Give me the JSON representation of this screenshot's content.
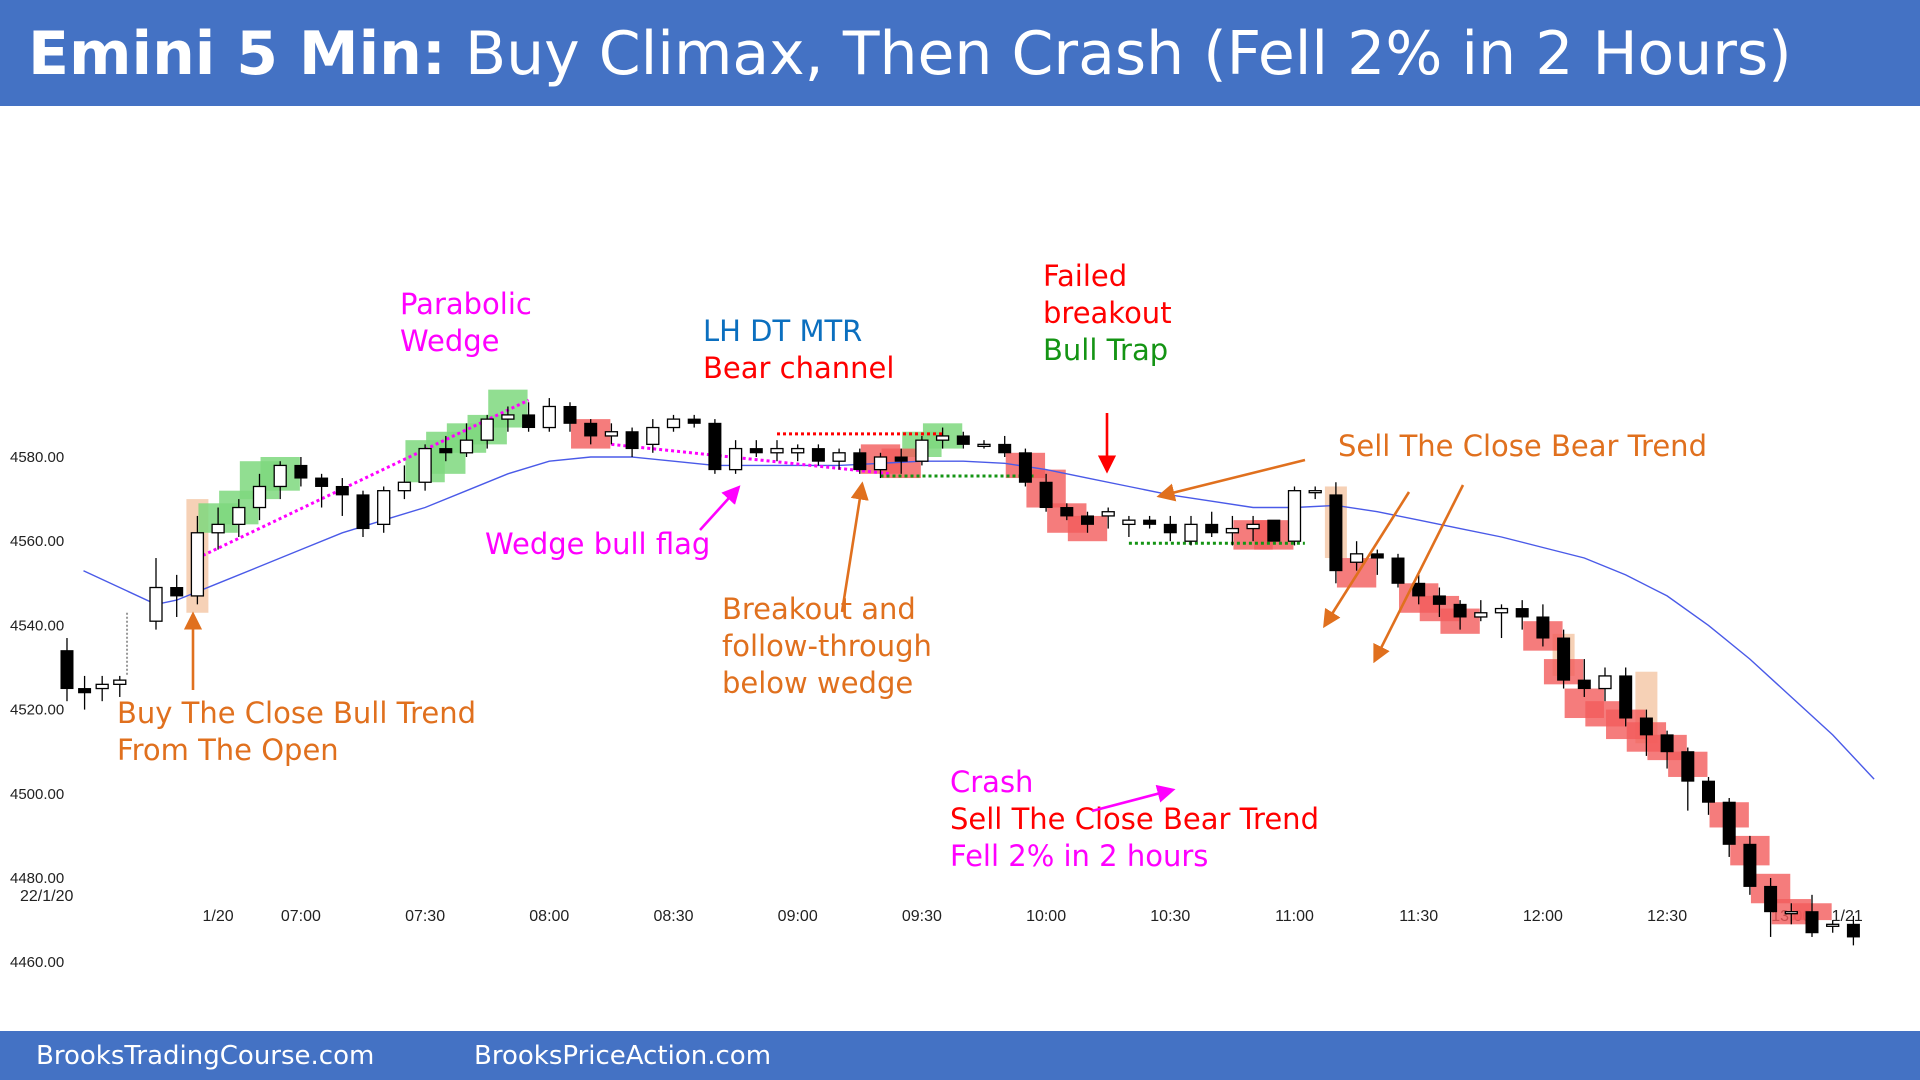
{
  "header": {
    "title_bold": "Emini 5 Min:",
    "title_rest": " Buy Climax, Then Crash (Fell 2% in 2 Hours)"
  },
  "footer": {
    "left": "BrooksTradingCourse.com",
    "right": "BrooksPriceAction.com"
  },
  "colors": {
    "header_bg": "#4472c4",
    "bull_box": "#7ed87e",
    "bear_box": "#f25b5b",
    "signal_box": "#f4c9a9",
    "ema": "#4a5ae8",
    "magenta": "#ff00ff",
    "orange": "#e0701e",
    "red": "#ff0000",
    "green": "#149414",
    "blue": "#0b6fbf"
  },
  "chart_data": {
    "type": "candlestick",
    "date_label": "22/1/20",
    "ylim": [
      4455,
      4615
    ],
    "y_ticks": [
      "4580.00",
      "4560.00",
      "4540.00",
      "4520.00",
      "4500.00",
      "4480.00",
      "4460.00"
    ],
    "x_tick_labels": [
      {
        "bar": 3,
        "label": "1/20"
      },
      {
        "bar": 7,
        "label": "07:00"
      },
      {
        "bar": 13,
        "label": "07:30"
      },
      {
        "bar": 19,
        "label": "08:00"
      },
      {
        "bar": 25,
        "label": "08:30"
      },
      {
        "bar": 31,
        "label": "09:00"
      },
      {
        "bar": 37,
        "label": "09:30"
      },
      {
        "bar": 43,
        "label": "10:00"
      },
      {
        "bar": 49,
        "label": "10:30"
      },
      {
        "bar": 55,
        "label": "11:00"
      },
      {
        "bar": 61,
        "label": "11:30"
      },
      {
        "bar": 67,
        "label": "12:00"
      },
      {
        "bar": 73,
        "label": "12:30"
      },
      {
        "bar": 79,
        "label": "13:00"
      },
      {
        "bar": 81.7,
        "label": "1/21"
      }
    ],
    "prev_day_bars": [
      [
        4534,
        4537,
        4522,
        4525
      ],
      [
        4525,
        4528,
        4520,
        4524
      ],
      [
        4525,
        4528,
        4522,
        4526
      ],
      [
        4526,
        4528,
        4523,
        4527
      ]
    ],
    "candles": [
      [
        4541,
        4556,
        4539,
        4549
      ],
      [
        4549,
        4552,
        4542,
        4547
      ],
      [
        4547,
        4566,
        4545,
        4562
      ],
      [
        4562,
        4568,
        4558,
        4564
      ],
      [
        4564,
        4570,
        4561,
        4568
      ],
      [
        4568,
        4576,
        4565,
        4573
      ],
      [
        4573,
        4579,
        4570,
        4578
      ],
      [
        4578,
        4580,
        4573,
        4575
      ],
      [
        4575,
        4576,
        4568,
        4573
      ],
      [
        4573,
        4575,
        4566,
        4571
      ],
      [
        4571,
        4572,
        4561,
        4563
      ],
      [
        4564,
        4573,
        4562,
        4572
      ],
      [
        4572,
        4578,
        4570,
        4574
      ],
      [
        4574,
        4583,
        4572,
        4582
      ],
      [
        4582,
        4585,
        4579,
        4581
      ],
      [
        4581,
        4588,
        4580,
        4584
      ],
      [
        4584,
        4590,
        4582,
        4589
      ],
      [
        4589,
        4592,
        4586,
        4590
      ],
      [
        4590,
        4593,
        4586,
        4587
      ],
      [
        4587,
        4594,
        4586,
        4592
      ],
      [
        4592,
        4593,
        4586,
        4588
      ],
      [
        4588,
        4589,
        4583,
        4585
      ],
      [
        4585,
        4588,
        4583,
        4586
      ],
      [
        4586,
        4587,
        4580,
        4582
      ],
      [
        4583,
        4589,
        4581,
        4587
      ],
      [
        4587,
        4590,
        4586,
        4589
      ],
      [
        4589,
        4590,
        4587,
        4588
      ],
      [
        4588,
        4589,
        4576,
        4577
      ],
      [
        4577,
        4584,
        4576,
        4582
      ],
      [
        4582,
        4584,
        4580,
        4581
      ],
      [
        4581,
        4584,
        4579,
        4582
      ],
      [
        4581,
        4583,
        4579,
        4582
      ],
      [
        4582,
        4583,
        4578,
        4579
      ],
      [
        4579,
        4582,
        4577,
        4581
      ],
      [
        4581,
        4582,
        4576,
        4577
      ],
      [
        4577,
        4581,
        4575,
        4580
      ],
      [
        4580,
        4582,
        4576,
        4579
      ],
      [
        4579,
        4585,
        4578,
        4584
      ],
      [
        4584,
        4587,
        4582,
        4585
      ],
      [
        4585,
        4586,
        4582,
        4583
      ],
      [
        4583,
        4584,
        4582,
        4583
      ],
      [
        4583,
        4585,
        4580,
        4581
      ],
      [
        4581,
        4582,
        4573,
        4574
      ],
      [
        4574,
        4576,
        4567,
        4568
      ],
      [
        4568,
        4569,
        4565,
        4566
      ],
      [
        4566,
        4567,
        4562,
        4564
      ],
      [
        4566,
        4568,
        4563,
        4567
      ],
      [
        4564,
        4566,
        4561,
        4565
      ],
      [
        4565,
        4566,
        4563,
        4564
      ],
      [
        4564,
        4566,
        4560,
        4562
      ],
      [
        4560,
        4566,
        4559,
        4564
      ],
      [
        4564,
        4567,
        4561,
        4562
      ],
      [
        4562,
        4566,
        4559,
        4563
      ],
      [
        4563,
        4566,
        4560,
        4564
      ],
      [
        4565,
        4565,
        4560,
        4560
      ],
      [
        4560,
        4573,
        4559,
        4572
      ],
      [
        4572,
        4573,
        4570,
        4572
      ],
      [
        4571,
        4574,
        4550,
        4553
      ],
      [
        4555,
        4560,
        4553,
        4557
      ],
      [
        4557,
        4558,
        4552,
        4556
      ],
      [
        4556,
        4557,
        4549,
        4550
      ],
      [
        4550,
        4552,
        4545,
        4547
      ],
      [
        4547,
        4549,
        4542,
        4545
      ],
      [
        4545,
        4546,
        4539,
        4542
      ],
      [
        4542,
        4546,
        4541,
        4543
      ],
      [
        4543,
        4545,
        4537,
        4544
      ],
      [
        4544,
        4546,
        4539,
        4542
      ],
      [
        4542,
        4545,
        4535,
        4537
      ],
      [
        4537,
        4539,
        4525,
        4527
      ],
      [
        4527,
        4532,
        4523,
        4525
      ],
      [
        4525,
        4530,
        4522,
        4528
      ],
      [
        4528,
        4530,
        4516,
        4518
      ],
      [
        4518,
        4520,
        4509,
        4514
      ],
      [
        4514,
        4515,
        4506,
        4510
      ],
      [
        4510,
        4511,
        4496,
        4503
      ],
      [
        4503,
        4504,
        4495,
        4498
      ],
      [
        4498,
        4499,
        4485,
        4488
      ],
      [
        4488,
        4490,
        4476,
        4478
      ],
      [
        4478,
        4480,
        4466,
        4472
      ],
      [
        4472,
        4474,
        4469,
        4472
      ],
      [
        4472,
        4476,
        4466,
        4467
      ],
      [
        4469,
        4470,
        4467,
        4469
      ],
      [
        4469,
        4471,
        4464,
        4466
      ]
    ],
    "ema": [
      [
        -3.5,
        4553
      ],
      [
        0,
        4545
      ],
      [
        1,
        4546
      ],
      [
        3,
        4550
      ],
      [
        5,
        4554
      ],
      [
        7,
        4558
      ],
      [
        9,
        4562
      ],
      [
        11,
        4565
      ],
      [
        13,
        4568
      ],
      [
        15,
        4572
      ],
      [
        17,
        4576
      ],
      [
        19,
        4579
      ],
      [
        21,
        4580
      ],
      [
        23,
        4580
      ],
      [
        25,
        4579
      ],
      [
        27,
        4578
      ],
      [
        29,
        4578
      ],
      [
        31,
        4578
      ],
      [
        33,
        4578
      ],
      [
        35,
        4578.5
      ],
      [
        37,
        4579
      ],
      [
        39,
        4579
      ],
      [
        41,
        4578.5
      ],
      [
        43,
        4577
      ],
      [
        45,
        4575
      ],
      [
        47,
        4573
      ],
      [
        49,
        4571
      ],
      [
        51,
        4569.5
      ],
      [
        53,
        4568
      ],
      [
        55,
        4568
      ],
      [
        57,
        4568.5
      ],
      [
        59,
        4567
      ],
      [
        61,
        4565
      ],
      [
        63,
        4563
      ],
      [
        65,
        4561
      ],
      [
        67,
        4558.5
      ],
      [
        69,
        4556
      ],
      [
        71,
        4552
      ],
      [
        73,
        4547
      ],
      [
        75,
        4540
      ],
      [
        77,
        4532
      ],
      [
        79,
        4523
      ],
      [
        81,
        4514
      ],
      [
        83,
        4503.5
      ]
    ],
    "bull_boxes": [
      [
        3,
        4562,
        4569
      ],
      [
        4,
        4564,
        4572
      ],
      [
        5,
        4570,
        4579
      ],
      [
        6,
        4572,
        4580
      ],
      [
        13,
        4574,
        4584
      ],
      [
        14,
        4576,
        4586
      ],
      [
        15,
        4581,
        4588
      ],
      [
        16,
        4583,
        4590
      ],
      [
        17,
        4587,
        4596
      ],
      [
        37,
        4580,
        4586
      ],
      [
        38,
        4582,
        4588
      ]
    ],
    "bear_boxes": [
      [
        21,
        4582,
        4589
      ],
      [
        35,
        4576,
        4583
      ],
      [
        36,
        4575,
        4582
      ],
      [
        42,
        4575,
        4581
      ],
      [
        43,
        4568,
        4577
      ],
      [
        44,
        4562,
        4569
      ],
      [
        45,
        4560,
        4566
      ],
      [
        53,
        4558,
        4565
      ],
      [
        54,
        4558,
        4565
      ],
      [
        58,
        4549,
        4556
      ],
      [
        61,
        4543,
        4550
      ],
      [
        62,
        4541,
        4547
      ],
      [
        63,
        4538,
        4544
      ],
      [
        67,
        4534,
        4541
      ],
      [
        68,
        4526,
        4532
      ],
      [
        69,
        4518,
        4525
      ],
      [
        70,
        4516,
        4522
      ],
      [
        71,
        4513,
        4520
      ],
      [
        72,
        4510,
        4517
      ],
      [
        73,
        4508,
        4514
      ],
      [
        74,
        4504,
        4510
      ],
      [
        76,
        4492,
        4498
      ],
      [
        77,
        4483,
        4490
      ],
      [
        78,
        4474,
        4481
      ],
      [
        79,
        4469,
        4475
      ],
      [
        80,
        4470,
        4474
      ]
    ],
    "signal_boxes": [
      [
        2,
        4543,
        4570
      ],
      [
        57,
        4556,
        4573
      ],
      [
        68,
        4528,
        4538
      ],
      [
        72,
        4512,
        4529
      ]
    ],
    "dotted_lines": [
      {
        "color": "magenta",
        "pts": [
          [
            2,
            4556
          ],
          [
            18,
            4593.5
          ]
        ]
      },
      {
        "color": "magenta",
        "pts": [
          [
            22,
            4583
          ],
          [
            35.5,
            4576
          ]
        ]
      },
      {
        "color": "red",
        "pts": [
          [
            30,
            4585.5
          ],
          [
            38,
            4585.5
          ]
        ]
      },
      {
        "color": "green",
        "pts": [
          [
            35,
            4575.5
          ],
          [
            42.5,
            4575.5
          ]
        ]
      },
      {
        "color": "green",
        "pts": [
          [
            47,
            4559.5
          ],
          [
            55.5,
            4559.5
          ]
        ]
      }
    ],
    "annotations": [
      {
        "lines": [
          {
            "text": "Parabolic",
            "color": "magenta"
          },
          {
            "text": "Wedge",
            "color": "magenta"
          }
        ]
      },
      {
        "lines": [
          {
            "text": "LH DT MTR",
            "color": "blue"
          },
          {
            "text": "Bear channel",
            "color": "red"
          }
        ]
      },
      {
        "lines": [
          {
            "text": "Failed",
            "color": "red"
          },
          {
            "text": "breakout",
            "color": "red"
          },
          {
            "text": "Bull Trap",
            "color": "green"
          }
        ]
      },
      {
        "lines": [
          {
            "text": "Sell The Close Bear Trend",
            "color": "orange"
          }
        ]
      },
      {
        "lines": [
          {
            "text": "Wedge bull flag",
            "color": "magenta"
          }
        ]
      },
      {
        "lines": [
          {
            "text": "Breakout and",
            "color": "orange"
          },
          {
            "text": "follow-through",
            "color": "orange"
          },
          {
            "text": "below wedge",
            "color": "orange"
          }
        ]
      },
      {
        "lines": [
          {
            "text": "Buy The Close Bull Trend",
            "color": "orange"
          },
          {
            "text": "From The Open",
            "color": "orange"
          }
        ]
      },
      {
        "lines": [
          {
            "text": "Crash",
            "color": "magenta"
          },
          {
            "text": "Sell The Close Bear Trend",
            "color": "red"
          },
          {
            "text": "Fell 2% in 2 hours",
            "color": "magenta"
          }
        ]
      }
    ]
  }
}
